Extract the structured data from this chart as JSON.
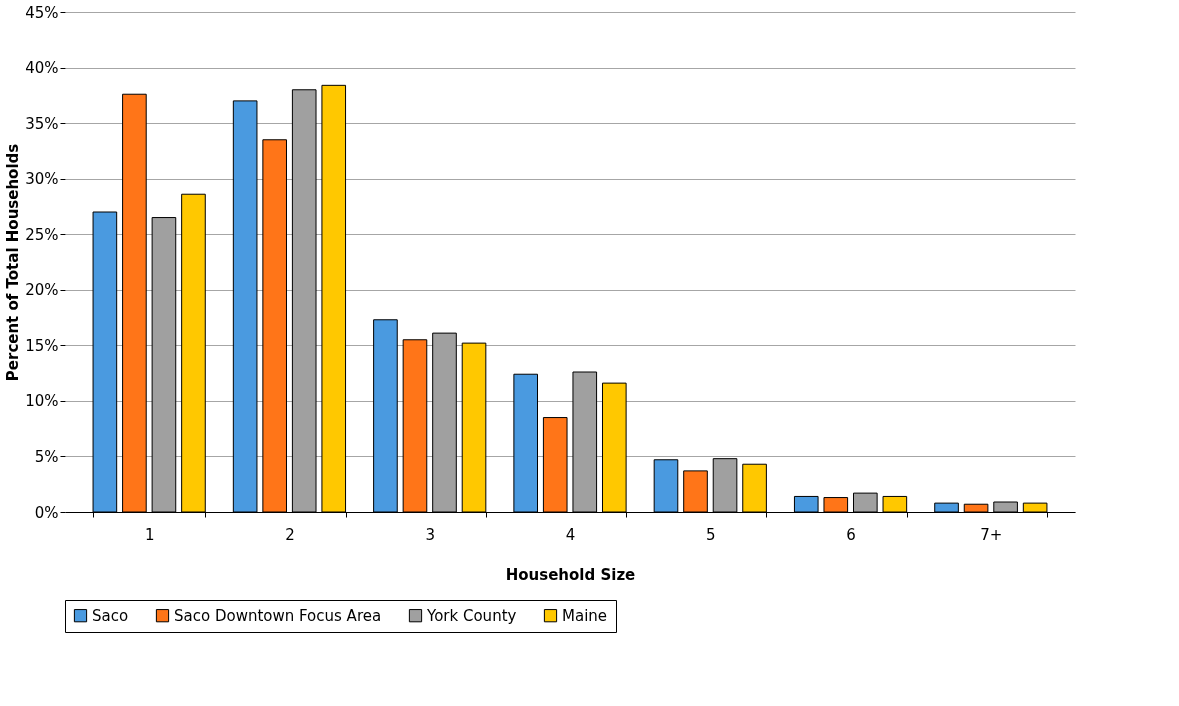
{
  "chart_data": {
    "type": "bar",
    "xlabel": "Household Size",
    "ylabel": "Percent of Total Households",
    "categories": [
      "1",
      "2",
      "3",
      "4",
      "5",
      "6",
      "7+"
    ],
    "series": [
      {
        "name": "Saco",
        "color": "#4a9ae0",
        "values": [
          27.0,
          37.0,
          17.3,
          12.4,
          4.7,
          1.4,
          0.8
        ]
      },
      {
        "name": "Saco Downtown Focus Area",
        "color": "#ff7518",
        "values": [
          37.6,
          33.5,
          15.5,
          8.5,
          3.7,
          1.3,
          0.7
        ]
      },
      {
        "name": "York County",
        "color": "#a0a0a0",
        "values": [
          26.5,
          38.0,
          16.1,
          12.6,
          4.8,
          1.7,
          0.9
        ]
      },
      {
        "name": "Maine",
        "color": "#ffc800",
        "values": [
          28.6,
          38.4,
          15.2,
          11.6,
          4.3,
          1.4,
          0.8
        ]
      }
    ],
    "ylim": [
      0,
      45
    ],
    "yticks": [
      {
        "value": 0,
        "label": "0%"
      },
      {
        "value": 5,
        "label": "5%"
      },
      {
        "value": 10,
        "label": "10%"
      },
      {
        "value": 15,
        "label": "15%"
      },
      {
        "value": 20,
        "label": "20%"
      },
      {
        "value": 25,
        "label": "25%"
      },
      {
        "value": 30,
        "label": "30%"
      },
      {
        "value": 35,
        "label": "35%"
      },
      {
        "value": 40,
        "label": "40%"
      },
      {
        "value": 45,
        "label": "45%"
      }
    ],
    "grid": "y",
    "legend": "bottom"
  }
}
